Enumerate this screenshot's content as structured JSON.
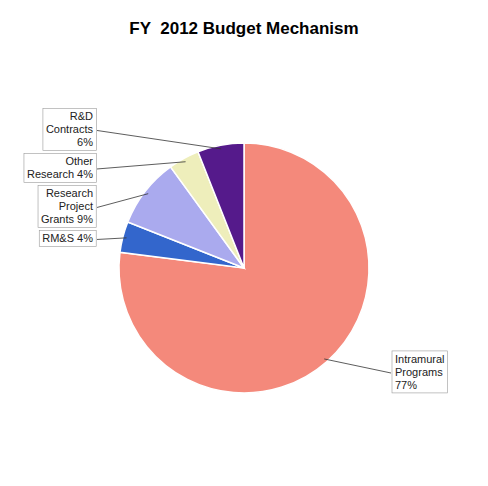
{
  "chart_data": {
    "type": "pie",
    "title": "FY  2012 Budget Mechanism",
    "categories": [
      "Intramural\nPrograms\n77%",
      "RM&S 4%",
      "Research\nProject\nGrants 9%",
      "Other\nResearch 4%",
      "R&D\nContracts\n6%"
    ],
    "values": [
      77,
      4,
      9,
      4,
      6
    ],
    "colors": [
      "#F4897B",
      "#3366CC",
      "#AAAAEE",
      "#EEEEBB",
      "#551A8B"
    ]
  }
}
